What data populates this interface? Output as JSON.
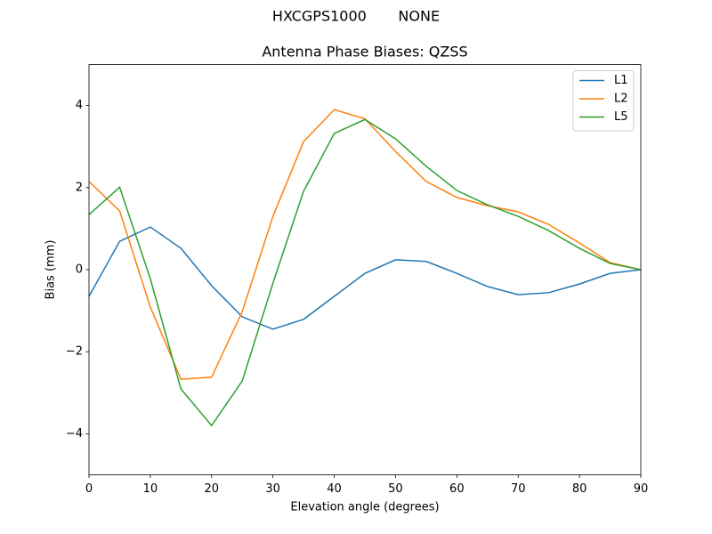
{
  "chart_data": {
    "type": "line",
    "suptitle": "HXCGPS1000       NONE",
    "title": "Antenna Phase Biases: QZSS",
    "xlabel": "Elevation angle (degrees)",
    "ylabel": "Bias (mm)",
    "x": [
      0,
      5,
      10,
      15,
      20,
      25,
      30,
      35,
      40,
      45,
      50,
      55,
      60,
      65,
      70,
      75,
      80,
      85,
      90
    ],
    "series": [
      {
        "name": "L1",
        "color": "#1f77b4",
        "values": [
          -0.65,
          0.69,
          1.04,
          0.52,
          -0.39,
          -1.15,
          -1.45,
          -1.21,
          -0.65,
          -0.09,
          0.24,
          0.2,
          -0.09,
          -0.41,
          -0.61,
          -0.56,
          -0.35,
          -0.09,
          0
        ]
      },
      {
        "name": "L2",
        "color": "#ff7f0e",
        "values": [
          2.15,
          1.43,
          -0.91,
          -2.67,
          -2.62,
          -1.02,
          1.3,
          3.12,
          3.9,
          3.68,
          2.88,
          2.15,
          1.76,
          1.56,
          1.41,
          1.1,
          0.65,
          0.17,
          0
        ]
      },
      {
        "name": "L5",
        "color": "#2ca02c",
        "values": [
          1.34,
          2.01,
          -0.22,
          -2.91,
          -3.8,
          -2.71,
          -0.33,
          1.91,
          3.32,
          3.66,
          3.19,
          2.52,
          1.93,
          1.58,
          1.3,
          0.95,
          0.52,
          0.15,
          0
        ]
      }
    ],
    "xlim": [
      0,
      90
    ],
    "xticks": [
      0,
      10,
      20,
      30,
      40,
      50,
      60,
      70,
      80,
      90
    ],
    "ylim": [
      -5,
      5
    ],
    "yticks": [
      {
        "value": -4,
        "label": "−4"
      },
      {
        "value": -2,
        "label": "−2"
      },
      0,
      2,
      4
    ],
    "grid": false,
    "legend": "upper right"
  }
}
